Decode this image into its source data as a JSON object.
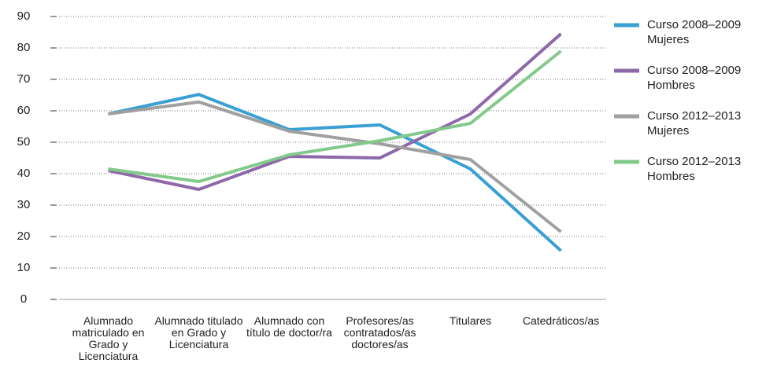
{
  "chart_data": {
    "type": "line",
    "categories": [
      "Alumnado matriculado en Grado y Licenciatura",
      "Alumnado titulado en Grado y Licenciatura",
      "Alumnado con título de doctor/ra",
      "Profesores/as contratados/as doctores/as",
      "Titulares",
      "Catedráticos/as"
    ],
    "series": [
      {
        "name": "Curso 2008–2009 Mujeres",
        "color": "#3a9fd3",
        "values": [
          59,
          65.2,
          54,
          55.5,
          41.5,
          15.5
        ]
      },
      {
        "name": "Curso 2008–2009 Hombres",
        "color": "#8e68aa",
        "values": [
          41,
          35,
          45.5,
          45,
          59,
          84.5
        ]
      },
      {
        "name": "Curso 2012–2013 Mujeres",
        "color": "#a0a0a0",
        "values": [
          59,
          62.8,
          53.5,
          49.5,
          44.5,
          21.5
        ]
      },
      {
        "name": "Curso 2012–2013 Hombres",
        "color": "#82c98a",
        "values": [
          41.5,
          37.5,
          46,
          50.5,
          56,
          79
        ]
      }
    ],
    "ylim": [
      0,
      90
    ],
    "yticks": [
      0,
      10,
      20,
      30,
      40,
      50,
      60,
      70,
      80,
      90
    ],
    "grid": true,
    "legend": "right"
  }
}
